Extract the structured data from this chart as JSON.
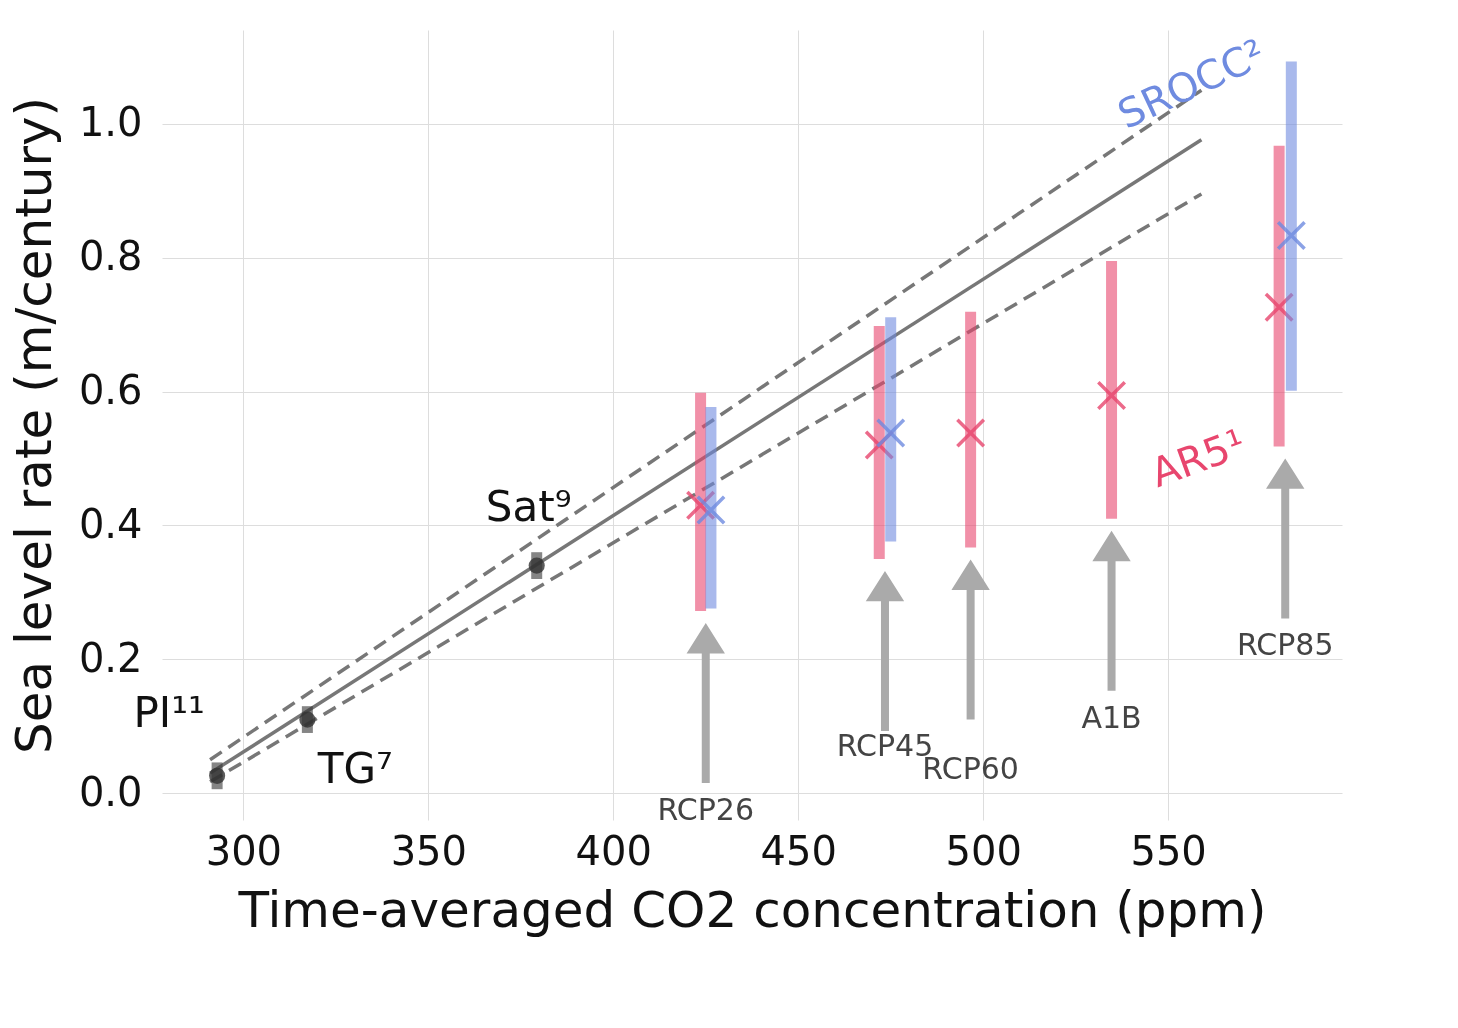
{
  "chart_data": {
    "type": "scatter",
    "xlabel": "Time-averaged CO2 concentration (ppm)",
    "ylabel": "Sea level rate (m/century)",
    "xlim": [
      278,
      597
    ],
    "ylim": [
      -0.04,
      1.14
    ],
    "xticks": [
      300,
      350,
      400,
      450,
      500,
      550
    ],
    "yticks": [
      {
        "value": 0,
        "label": "0.0"
      },
      0.2,
      0.4,
      0.6,
      0.8,
      {
        "value": 1,
        "label": "1.0"
      }
    ],
    "grid": true,
    "series": [
      {
        "type": "line",
        "color": "#777777",
        "line_style": "solid",
        "x": [
          291,
          559
        ],
        "values": [
          0.03,
          0.976
        ]
      },
      {
        "type": "line",
        "color": "#777777",
        "line_style": "dashed",
        "x": [
          291,
          559
        ],
        "values": [
          0.05,
          1.05
        ]
      },
      {
        "type": "line",
        "color": "#777777",
        "line_style": "dashed",
        "x": [
          291,
          559
        ],
        "values": [
          0.017,
          0.895
        ]
      },
      {
        "type": "scatter",
        "color": "#333333",
        "marker": "circle",
        "x": [
          292.9,
          317.3,
          379.3
        ],
        "values": [
          0.026,
          0.11,
          0.34
        ],
        "errors": [
          0.02,
          0.02,
          0.02
        ]
      },
      {
        "name": "AR5¹",
        "color": "#e8466e",
        "marker": "cross",
        "x": [
          423.6,
          471.9,
          496.6,
          534.7,
          580
        ],
        "values": [
          0.43,
          0.52,
          0.538,
          0.594,
          0.726
        ],
        "errors": [
          [
            0.272,
            0.598
          ],
          [
            0.35,
            0.698
          ],
          [
            0.367,
            0.719
          ],
          [
            0.41,
            0.795
          ],
          [
            0.518,
            0.967
          ]
        ]
      },
      {
        "name": "SROCC²",
        "color": "#6f8be0",
        "marker": "cross",
        "x": [
          426.4,
          475,
          583.3
        ],
        "values": [
          0.423,
          0.538,
          0.833
        ],
        "errors": [
          [
            0.276,
            0.577
          ],
          [
            0.376,
            0.711
          ],
          [
            0.601,
            1.093
          ]
        ]
      }
    ],
    "annotations": [
      "PI¹¹",
      "TG⁷",
      "Sat⁹",
      "RCP26",
      "RCP45",
      "RCP60",
      "A1B",
      "RCP85"
    ]
  }
}
